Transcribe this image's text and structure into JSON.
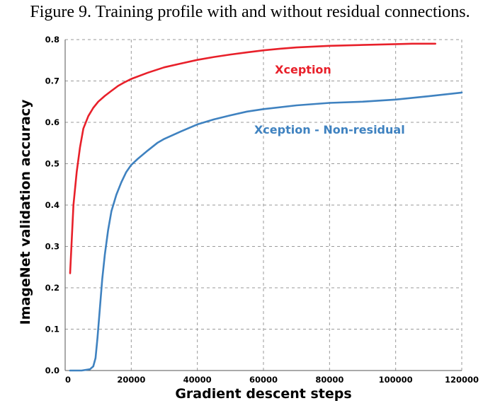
{
  "figure": {
    "caption": "Figure 9. Training profile with and without residual connections."
  },
  "chart_data": {
    "type": "line",
    "xlabel": "Gradient descent steps",
    "ylabel": "ImageNet validation accuracy",
    "xlim": [
      0,
      120000
    ],
    "ylim": [
      0.0,
      0.8
    ],
    "xticks": [
      20000,
      40000,
      60000,
      80000,
      100000,
      120000
    ],
    "xtick_labels": [
      "20000",
      "40000",
      "60000",
      "80000",
      "100000",
      "120000"
    ],
    "origin_label": "0",
    "yticks": [
      0.0,
      0.1,
      0.2,
      0.3,
      0.4,
      0.5,
      0.6,
      0.7,
      0.8
    ],
    "ytick_labels": [
      "0.0",
      "0.1",
      "0.2",
      "0.3",
      "0.4",
      "0.5",
      "0.6",
      "0.7",
      "0.8"
    ],
    "grid": true,
    "series": [
      {
        "name": "Xception",
        "color": "#e8202a",
        "points": [
          [
            1500,
            0.235
          ],
          [
            2500,
            0.4
          ],
          [
            3500,
            0.48
          ],
          [
            4500,
            0.54
          ],
          [
            5500,
            0.585
          ],
          [
            7000,
            0.615
          ],
          [
            8500,
            0.635
          ],
          [
            10000,
            0.65
          ],
          [
            12000,
            0.664
          ],
          [
            14000,
            0.676
          ],
          [
            16000,
            0.688
          ],
          [
            18000,
            0.697
          ],
          [
            20000,
            0.705
          ],
          [
            25000,
            0.72
          ],
          [
            30000,
            0.733
          ],
          [
            35000,
            0.742
          ],
          [
            40000,
            0.751
          ],
          [
            45000,
            0.758
          ],
          [
            50000,
            0.764
          ],
          [
            55000,
            0.769
          ],
          [
            60000,
            0.774
          ],
          [
            65000,
            0.778
          ],
          [
            70000,
            0.781
          ],
          [
            75000,
            0.783
          ],
          [
            80000,
            0.785
          ],
          [
            90000,
            0.787
          ],
          [
            100000,
            0.789
          ],
          [
            105000,
            0.79
          ],
          [
            112000,
            0.79
          ]
        ]
      },
      {
        "name": "Xception - Non-residual",
        "color": "#3f82c0",
        "points": [
          [
            1500,
            0.0
          ],
          [
            5000,
            0.0
          ],
          [
            7500,
            0.003
          ],
          [
            8500,
            0.01
          ],
          [
            9200,
            0.03
          ],
          [
            9800,
            0.08
          ],
          [
            10500,
            0.15
          ],
          [
            11200,
            0.22
          ],
          [
            12000,
            0.28
          ],
          [
            13000,
            0.34
          ],
          [
            14000,
            0.385
          ],
          [
            15500,
            0.425
          ],
          [
            17000,
            0.455
          ],
          [
            18500,
            0.48
          ],
          [
            20000,
            0.497
          ],
          [
            22000,
            0.512
          ],
          [
            25000,
            0.532
          ],
          [
            28000,
            0.551
          ],
          [
            30000,
            0.56
          ],
          [
            35000,
            0.578
          ],
          [
            40000,
            0.595
          ],
          [
            45000,
            0.607
          ],
          [
            50000,
            0.617
          ],
          [
            55000,
            0.626
          ],
          [
            60000,
            0.632
          ],
          [
            70000,
            0.641
          ],
          [
            80000,
            0.647
          ],
          [
            90000,
            0.65
          ],
          [
            100000,
            0.655
          ],
          [
            110000,
            0.663
          ],
          [
            120000,
            0.672
          ]
        ]
      }
    ],
    "annotations": [
      {
        "text": "Xception",
        "x": 72000,
        "y": 0.718,
        "color": "#e8202a",
        "series_index": 0
      },
      {
        "text": "Xception - Non-residual",
        "x": 80000,
        "y": 0.573,
        "color": "#3f82c0",
        "series_index": 1
      }
    ]
  }
}
